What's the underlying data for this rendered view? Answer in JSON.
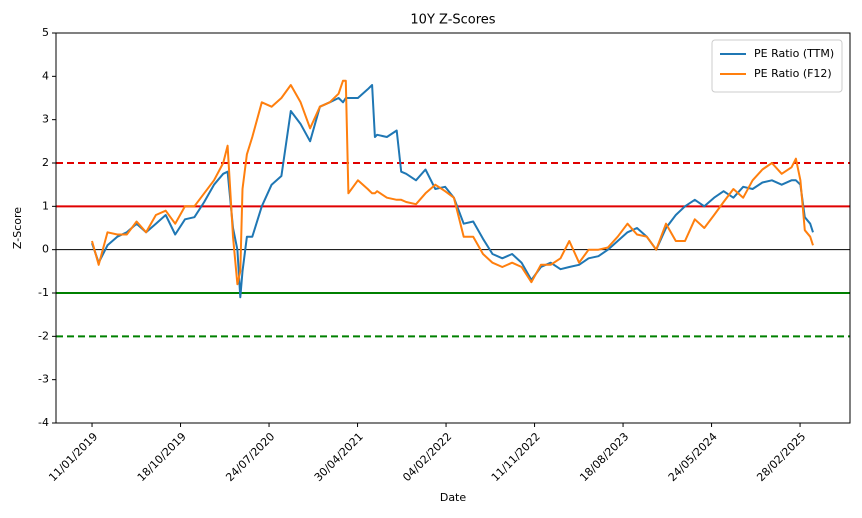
{
  "chart_data": {
    "type": "line",
    "title": "10Y Z-Scores",
    "xlabel": "Date",
    "ylabel": "Z-Score",
    "xlim": [
      "19/09/2018",
      "05/08/2025"
    ],
    "xticks": [
      "11/01/2019",
      "18/10/2019",
      "24/07/2020",
      "30/04/2021",
      "04/02/2022",
      "11/11/2022",
      "18/08/2023",
      "24/05/2024",
      "28/02/2025"
    ],
    "ylim": [
      -4,
      5
    ],
    "yticks": [
      -4,
      -3,
      -2,
      -1,
      0,
      1,
      2,
      3,
      4,
      5
    ],
    "legend": "upper right",
    "hlines": [
      {
        "value": 2,
        "color": "#e00000",
        "style": "dashed",
        "width": 2
      },
      {
        "value": 1,
        "color": "#e00000",
        "style": "solid",
        "width": 2
      },
      {
        "value": 0,
        "color": "#000000",
        "style": "solid",
        "width": 1
      },
      {
        "value": -1,
        "color": "#008000",
        "style": "solid",
        "width": 2
      },
      {
        "value": -2,
        "color": "#008000",
        "style": "dashed",
        "width": 2
      }
    ],
    "series": [
      {
        "name": "PE Ratio (TTM)",
        "color": "#1f77b4",
        "x": [
          "11/01/2019",
          "01/02/2019",
          "01/03/2019",
          "01/04/2019",
          "01/05/2019",
          "01/06/2019",
          "01/07/2019",
          "01/08/2019",
          "01/09/2019",
          "01/10/2019",
          "01/11/2019",
          "01/12/2019",
          "01/01/2020",
          "01/02/2020",
          "01/03/2020",
          "15/03/2020",
          "01/04/2020",
          "15/04/2020",
          "24/04/2020",
          "01/05/2020",
          "15/05/2020",
          "01/06/2020",
          "01/07/2020",
          "01/08/2020",
          "01/09/2020",
          "01/10/2020",
          "01/11/2020",
          "01/12/2020",
          "01/01/2021",
          "01/02/2021",
          "01/03/2021",
          "15/03/2021",
          "24/03/2021",
          "01/04/2021",
          "01/05/2021",
          "01/06/2021",
          "15/06/2021",
          "24/06/2021",
          "01/07/2021",
          "01/08/2021",
          "01/09/2021",
          "15/09/2021",
          "01/10/2021",
          "01/11/2021",
          "01/12/2021",
          "01/01/2022",
          "01/02/2022",
          "01/03/2022",
          "01/04/2022",
          "01/05/2022",
          "01/06/2022",
          "01/07/2022",
          "01/08/2022",
          "01/09/2022",
          "01/10/2022",
          "01/11/2022",
          "01/12/2022",
          "01/01/2023",
          "01/02/2023",
          "01/03/2023",
          "01/04/2023",
          "01/05/2023",
          "01/06/2023",
          "01/07/2023",
          "01/08/2023",
          "01/09/2023",
          "01/10/2023",
          "01/11/2023",
          "01/12/2023",
          "01/01/2024",
          "01/02/2024",
          "01/03/2024",
          "01/04/2024",
          "01/05/2024",
          "01/06/2024",
          "01/07/2024",
          "01/08/2024",
          "01/09/2024",
          "01/10/2024",
          "01/11/2024",
          "01/12/2024",
          "01/01/2025",
          "01/02/2025",
          "15/02/2025",
          "01/03/2025",
          "15/03/2025",
          "01/04/2025",
          "10/04/2025"
        ],
        "values": [
          0.15,
          -0.3,
          0.1,
          0.3,
          0.4,
          0.6,
          0.4,
          0.6,
          0.8,
          0.35,
          0.7,
          0.75,
          1.1,
          1.5,
          1.75,
          1.8,
          0.5,
          0.0,
          -1.1,
          -0.5,
          0.3,
          0.3,
          1.0,
          1.5,
          1.7,
          3.2,
          2.9,
          2.5,
          3.3,
          3.4,
          3.5,
          3.4,
          3.5,
          3.5,
          3.5,
          3.7,
          3.8,
          2.6,
          2.65,
          2.6,
          2.75,
          1.8,
          1.75,
          1.6,
          1.85,
          1.4,
          1.45,
          1.2,
          0.6,
          0.65,
          0.25,
          -0.1,
          -0.2,
          -0.1,
          -0.3,
          -0.7,
          -0.4,
          -0.3,
          -0.45,
          -0.4,
          -0.35,
          -0.2,
          -0.15,
          0.0,
          0.2,
          0.4,
          0.5,
          0.3,
          0.0,
          0.5,
          0.8,
          1.0,
          1.15,
          1.0,
          1.2,
          1.35,
          1.2,
          1.45,
          1.4,
          1.55,
          1.6,
          1.5,
          1.6,
          1.6,
          1.5,
          0.75,
          0.6,
          0.4
        ]
      },
      {
        "name": "PE Ratio (F12)",
        "color": "#ff7f0e",
        "x": [
          "11/01/2019",
          "01/02/2019",
          "01/03/2019",
          "01/04/2019",
          "01/05/2019",
          "01/06/2019",
          "01/07/2019",
          "01/08/2019",
          "01/09/2019",
          "01/10/2019",
          "01/11/2019",
          "01/12/2019",
          "01/01/2020",
          "01/02/2020",
          "01/03/2020",
          "15/03/2020",
          "01/04/2020",
          "15/04/2020",
          "24/04/2020",
          "01/05/2020",
          "15/05/2020",
          "01/06/2020",
          "01/07/2020",
          "01/08/2020",
          "01/09/2020",
          "01/10/2020",
          "01/11/2020",
          "01/12/2020",
          "01/01/2021",
          "01/02/2021",
          "01/03/2021",
          "15/03/2021",
          "24/03/2021",
          "01/04/2021",
          "01/05/2021",
          "01/06/2021",
          "15/06/2021",
          "24/06/2021",
          "01/07/2021",
          "01/08/2021",
          "01/09/2021",
          "15/09/2021",
          "01/10/2021",
          "01/11/2021",
          "01/12/2021",
          "01/01/2022",
          "01/02/2022",
          "01/03/2022",
          "01/04/2022",
          "01/05/2022",
          "01/06/2022",
          "01/07/2022",
          "01/08/2022",
          "01/09/2022",
          "01/10/2022",
          "01/11/2022",
          "01/12/2022",
          "01/01/2023",
          "01/02/2023",
          "01/03/2023",
          "01/04/2023",
          "01/05/2023",
          "01/06/2023",
          "01/07/2023",
          "01/08/2023",
          "01/09/2023",
          "01/10/2023",
          "01/11/2023",
          "01/12/2023",
          "01/01/2024",
          "01/02/2024",
          "01/03/2024",
          "01/04/2024",
          "01/05/2024",
          "01/06/2024",
          "01/07/2024",
          "01/08/2024",
          "01/09/2024",
          "01/10/2024",
          "01/11/2024",
          "01/12/2024",
          "01/01/2025",
          "01/02/2025",
          "15/02/2025",
          "01/03/2025",
          "15/03/2025",
          "01/04/2025",
          "10/04/2025"
        ],
        "values": [
          0.2,
          -0.35,
          0.4,
          0.35,
          0.35,
          0.65,
          0.4,
          0.8,
          0.9,
          0.6,
          1.0,
          1.0,
          1.3,
          1.6,
          2.0,
          2.4,
          0.3,
          -0.8,
          -0.5,
          1.4,
          2.2,
          2.6,
          3.4,
          3.3,
          3.5,
          3.8,
          3.4,
          2.8,
          3.3,
          3.4,
          3.6,
          3.9,
          3.9,
          1.3,
          1.6,
          1.4,
          1.3,
          1.3,
          1.35,
          1.2,
          1.15,
          1.15,
          1.1,
          1.05,
          1.3,
          1.5,
          1.35,
          1.2,
          0.3,
          0.3,
          -0.1,
          -0.3,
          -0.4,
          -0.3,
          -0.4,
          -0.75,
          -0.35,
          -0.35,
          -0.2,
          0.2,
          -0.3,
          0.0,
          0.0,
          0.05,
          0.3,
          0.6,
          0.35,
          0.3,
          0.0,
          0.6,
          0.2,
          0.2,
          0.7,
          0.5,
          0.8,
          1.1,
          1.4,
          1.2,
          1.6,
          1.85,
          2.0,
          1.75,
          1.9,
          2.1,
          1.6,
          0.45,
          0.3,
          0.1
        ]
      }
    ]
  }
}
